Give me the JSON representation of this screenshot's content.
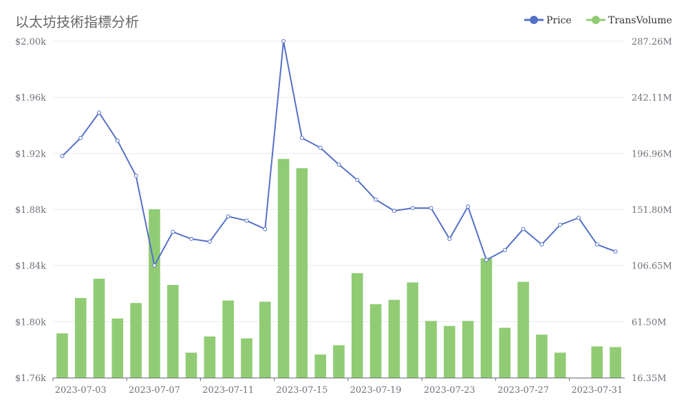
{
  "chart_data": {
    "type": "bar+line",
    "title": "以太坊技術指標分析",
    "legend": {
      "position": "top-right",
      "items": [
        {
          "name": "Price",
          "color": "#5470c6",
          "marker": "line-circle"
        },
        {
          "name": "TransVolume",
          "color": "#91cc75",
          "marker": "line-circle"
        }
      ]
    },
    "x": [
      "2023-07-02",
      "2023-07-03",
      "2023-07-04",
      "2023-07-05",
      "2023-07-06",
      "2023-07-07",
      "2023-07-08",
      "2023-07-09",
      "2023-07-10",
      "2023-07-11",
      "2023-07-12",
      "2023-07-13",
      "2023-07-14",
      "2023-07-15",
      "2023-07-16",
      "2023-07-17",
      "2023-07-18",
      "2023-07-19",
      "2023-07-20",
      "2023-07-21",
      "2023-07-22",
      "2023-07-23",
      "2023-07-24",
      "2023-07-25",
      "2023-07-26",
      "2023-07-27",
      "2023-07-28",
      "2023-07-29",
      "2023-07-30",
      "2023-07-31",
      "2023-08-01"
    ],
    "x_tick_labels": [
      "2023-07-03",
      "2023-07-07",
      "2023-07-11",
      "2023-07-15",
      "2023-07-19",
      "2023-07-23",
      "2023-07-27",
      "2023-07-31"
    ],
    "series": [
      {
        "name": "Price",
        "type": "line",
        "axis": "left",
        "color": "#5470c6",
        "values": [
          1918,
          1931,
          1949,
          1929,
          1904,
          1840,
          1864,
          1859,
          1857,
          1875,
          1872,
          1866,
          2000,
          1931,
          1924,
          1912,
          1901,
          1887,
          1879,
          1881,
          1881,
          1859,
          1882,
          1844,
          1851,
          1866,
          1855,
          1869,
          1874,
          1855,
          1850
        ]
      },
      {
        "name": "TransVolume",
        "type": "bar",
        "axis": "right",
        "color": "#91cc75",
        "values": [
          52.0,
          80.5,
          96.0,
          64.0,
          76.5,
          152.0,
          91.0,
          36.5,
          49.5,
          78.5,
          48.0,
          77.5,
          192.5,
          185.0,
          35.0,
          42.5,
          100.5,
          75.5,
          79.0,
          93.0,
          62.0,
          58.0,
          62.0,
          112.5,
          56.5,
          93.5,
          51.0,
          36.5,
          16.35,
          41.5,
          41.0
        ]
      }
    ],
    "y_left": {
      "min": 1760,
      "max": 2000,
      "ticks": [
        1760,
        1800,
        1840,
        1880,
        1920,
        1960,
        2000
      ],
      "tick_labels": [
        "$1.76k",
        "$1.80k",
        "$1.84k",
        "$1.88k",
        "$1.92k",
        "$1.96k",
        "$2.00k"
      ]
    },
    "y_right": {
      "min": 16.35,
      "max": 287.26,
      "tick_labels": [
        "16.35M",
        "61.50M",
        "106.65M",
        "151.80M",
        "196.96M",
        "242.11M",
        "287.26M"
      ]
    },
    "grid": true
  }
}
